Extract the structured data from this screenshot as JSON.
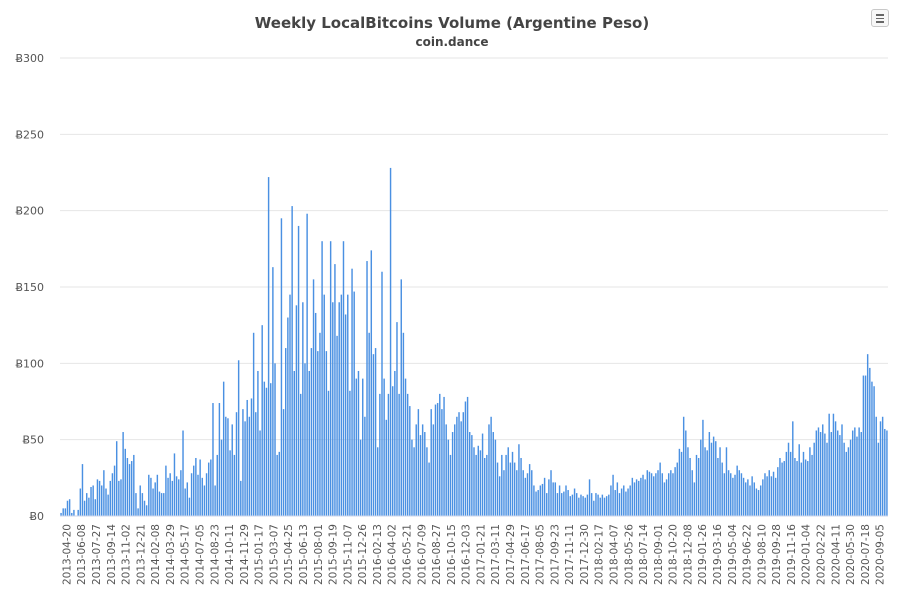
{
  "chart_data": {
    "type": "bar",
    "title": "Weekly LocalBitcoins Volume (Argentine Peso)",
    "subtitle": "coin.dance",
    "xlabel": "",
    "ylabel": "",
    "ylim": [
      0,
      300
    ],
    "y_ticks": [
      "Ƀ0",
      "Ƀ50",
      "Ƀ100",
      "Ƀ150",
      "Ƀ200",
      "Ƀ250",
      "Ƀ300"
    ],
    "x_tick_labels": [
      "2013-04-20",
      "2013-06-08",
      "2013-07-27",
      "2013-09-14",
      "2013-11-02",
      "2013-12-21",
      "2014-02-08",
      "2014-03-29",
      "2014-05-17",
      "2014-07-05",
      "2014-08-23",
      "2014-10-11",
      "2014-11-29",
      "2015-01-17",
      "2015-03-07",
      "2015-04-25",
      "2015-06-13",
      "2015-08-01",
      "2015-09-19",
      "2015-11-07",
      "2015-12-26",
      "2016-02-13",
      "2016-04-02",
      "2016-05-21",
      "2016-07-09",
      "2016-08-27",
      "2016-10-15",
      "2016-12-03",
      "2017-01-21",
      "2017-03-11",
      "2017-04-29",
      "2017-06-17",
      "2017-08-05",
      "2017-09-23",
      "2017-11-11",
      "2017-12-30",
      "2018-02-17",
      "2018-04-07",
      "2018-05-26",
      "2018-07-14",
      "2018-09-01",
      "2018-10-20",
      "2018-12-08",
      "2019-01-26",
      "2019-03-16",
      "2019-05-04",
      "2019-06-22",
      "2019-08-10",
      "2019-09-28",
      "2019-11-16",
      "2020-01-04",
      "2020-02-22",
      "2020-04-11",
      "2020-05-30",
      "2020-07-18",
      "2020-09-05"
    ],
    "grid": true,
    "legend": "none",
    "color": "#4a90e2",
    "values": [
      2,
      5,
      5,
      10,
      11,
      2,
      4,
      0,
      4,
      18,
      34,
      10,
      15,
      12,
      19,
      20,
      11,
      24,
      23,
      20,
      30,
      18,
      14,
      23,
      28,
      33,
      49,
      23,
      24,
      55,
      44,
      38,
      34,
      36,
      40,
      15,
      5,
      20,
      15,
      10,
      7,
      27,
      25,
      18,
      22,
      27,
      16,
      15,
      15,
      33,
      25,
      28,
      23,
      41,
      26,
      24,
      30,
      56,
      18,
      22,
      12,
      28,
      33,
      38,
      27,
      37,
      25,
      20,
      28,
      35,
      37,
      74,
      20,
      40,
      74,
      50,
      88,
      65,
      64,
      43,
      60,
      40,
      68,
      102,
      23,
      70,
      62,
      76,
      65,
      77,
      120,
      68,
      95,
      56,
      125,
      88,
      84,
      222,
      87,
      163,
      100,
      40,
      42,
      195,
      70,
      110,
      130,
      145,
      203,
      95,
      138,
      190,
      80,
      140,
      100,
      198,
      95,
      110,
      155,
      133,
      108,
      120,
      180,
      145,
      108,
      82,
      180,
      140,
      165,
      118,
      140,
      145,
      180,
      132,
      145,
      82,
      162,
      147,
      90,
      95,
      50,
      90,
      65,
      167,
      120,
      174,
      106,
      110,
      45,
      80,
      160,
      90,
      63,
      80,
      228,
      85,
      95,
      127,
      80,
      155,
      120,
      90,
      80,
      72,
      50,
      45,
      60,
      70,
      53,
      60,
      55,
      45,
      35,
      70,
      60,
      73,
      74,
      80,
      70,
      78,
      60,
      50,
      40,
      55,
      60,
      65,
      68,
      62,
      68,
      75,
      78,
      55,
      53,
      45,
      40,
      46,
      43,
      54,
      38,
      40,
      60,
      65,
      55,
      50,
      35,
      26,
      40,
      30,
      40,
      45,
      35,
      42,
      35,
      30,
      47,
      38,
      30,
      25,
      28,
      34,
      30,
      20,
      16,
      17,
      20,
      21,
      25,
      15,
      24,
      30,
      22,
      22,
      15,
      20,
      15,
      16,
      20,
      17,
      13,
      14,
      18,
      15,
      12,
      14,
      13,
      12,
      14,
      24,
      15,
      10,
      15,
      14,
      12,
      14,
      12,
      13,
      14,
      20,
      27,
      17,
      22,
      15,
      18,
      20,
      16,
      18,
      20,
      25,
      22,
      24,
      23,
      25,
      27,
      24,
      30,
      29,
      28,
      26,
      28,
      30,
      35,
      28,
      22,
      24,
      28,
      30,
      28,
      32,
      35,
      44,
      42,
      65,
      56,
      45,
      38,
      30,
      22,
      40,
      38,
      50,
      63,
      45,
      43,
      55,
      48,
      52,
      49,
      38,
      45,
      35,
      28,
      45,
      30,
      28,
      25,
      27,
      33,
      30,
      28,
      25,
      22,
      24,
      20,
      26,
      22,
      18,
      17,
      20,
      24,
      28,
      26,
      30,
      26,
      29,
      25,
      32,
      38,
      35,
      36,
      42,
      48,
      42,
      62,
      38,
      36,
      47,
      35,
      42,
      37,
      36,
      45,
      40,
      48,
      56,
      58,
      55,
      60,
      54,
      48,
      67,
      55,
      67,
      62,
      56,
      53,
      60,
      48,
      42,
      45,
      50,
      56,
      58,
      52,
      58,
      55,
      92,
      92,
      106,
      97,
      88,
      85,
      65,
      48,
      62,
      65,
      57,
      56
    ]
  }
}
